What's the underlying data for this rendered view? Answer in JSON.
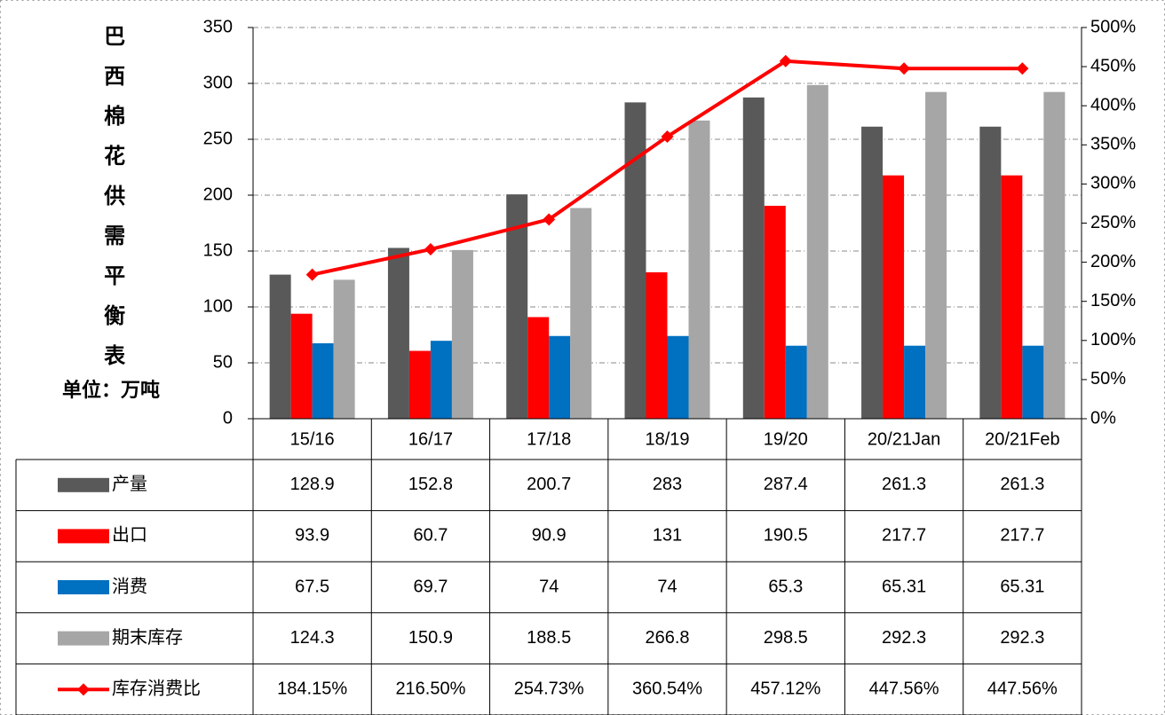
{
  "chart_data": {
    "type": "bar",
    "title": "巴西棉花供需平衡表",
    "unit_label": "单位：万吨",
    "categories": [
      "15/16",
      "16/17",
      "17/18",
      "18/19",
      "19/20",
      "20/21Jan",
      "20/21Feb"
    ],
    "series": [
      {
        "name": "产量",
        "color": "#595959",
        "values": [
          128.9,
          152.8,
          200.7,
          283,
          287.4,
          261.3,
          261.3
        ]
      },
      {
        "name": "出口",
        "color": "#ff0000",
        "values": [
          93.9,
          60.7,
          90.9,
          131,
          190.5,
          217.7,
          217.7
        ]
      },
      {
        "name": "消费",
        "color": "#0070c0",
        "values": [
          67.5,
          69.7,
          74,
          74,
          65.3,
          65.31,
          65.31
        ]
      },
      {
        "name": "期末库存",
        "color": "#a6a6a6",
        "values": [
          124.3,
          150.9,
          188.5,
          266.8,
          298.5,
          292.3,
          292.3
        ]
      },
      {
        "name": "库存消费比",
        "color": "#ff0000",
        "type": "line",
        "axis": "y2",
        "values": [
          184.15,
          216.5,
          254.73,
          360.54,
          457.12,
          447.56,
          447.56
        ],
        "value_labels": [
          "184.15%",
          "216.50%",
          "254.73%",
          "360.54%",
          "457.12%",
          "447.56%",
          "447.56%"
        ]
      }
    ],
    "ylim": [
      0,
      350
    ],
    "yticks": [
      0,
      50,
      100,
      150,
      200,
      250,
      300,
      350
    ],
    "y2lim": [
      0,
      500
    ],
    "y2ticks": [
      {
        "value": 0,
        "label": "0%"
      },
      {
        "value": 50,
        "label": "50%"
      },
      {
        "value": 100,
        "label": "100%"
      },
      {
        "value": 150,
        "label": "150%"
      },
      {
        "value": 200,
        "label": "200%"
      },
      {
        "value": 250,
        "label": "250%"
      },
      {
        "value": 300,
        "label": "300%"
      },
      {
        "value": 350,
        "label": "350%"
      },
      {
        "value": 400,
        "label": "400%"
      },
      {
        "value": 450,
        "label": "450%"
      },
      {
        "value": 500,
        "label": "500%"
      }
    ],
    "grid": true
  }
}
